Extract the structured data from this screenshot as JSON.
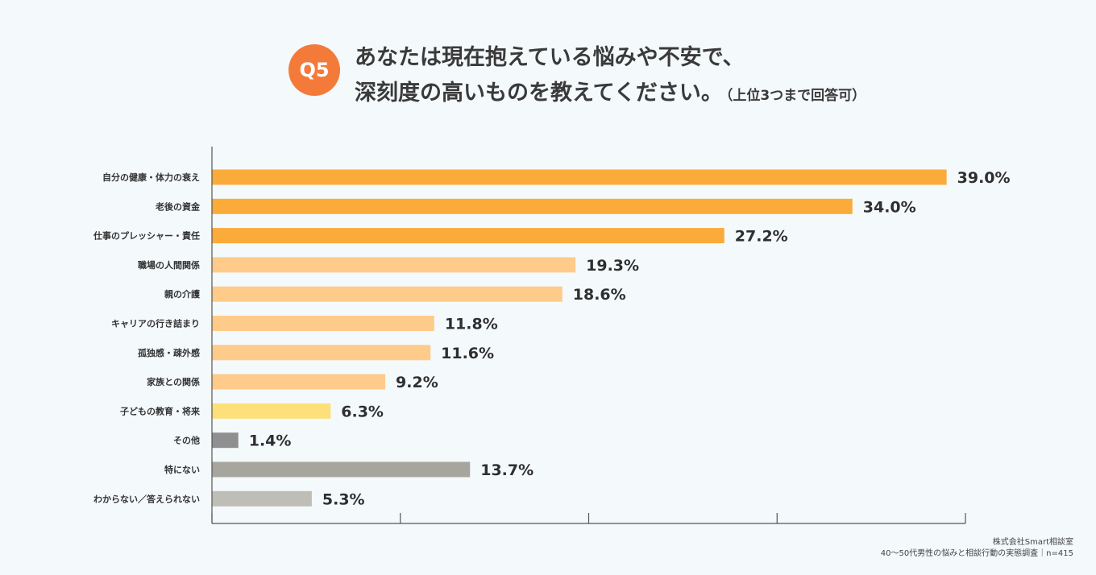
{
  "header": {
    "badge": "Q5",
    "title_line1": "あなたは現在抱えている悩みや不安で、",
    "title_line2": "深刻度の高いものを教えてください。",
    "title_note": "（上位3つまで回答可）"
  },
  "colors": {
    "accent": "#f47a3a",
    "top3": "#fbab3a",
    "mid": "#fecb8a",
    "yellow": "#fde07a",
    "other": "#8f8f8f",
    "none": "#a7a69e",
    "unknown": "#bfbeb6",
    "axis": "#555555"
  },
  "chart_data": {
    "type": "bar",
    "orientation": "horizontal",
    "categories": [
      "自分の健康・体力の衰え",
      "老後の資金",
      "仕事のプレッシャー・責任",
      "職場の人間関係",
      "親の介護",
      "キャリアの行き詰まり",
      "孤独感・疎外感",
      "家族との関係",
      "子どもの教育・将来",
      "その他",
      "特にない",
      "わからない／答えられない"
    ],
    "values": [
      39.0,
      34.0,
      27.2,
      19.3,
      18.6,
      11.8,
      11.6,
      9.2,
      6.3,
      1.4,
      13.7,
      5.3
    ],
    "value_labels": [
      "39.0%",
      "34.0%",
      "27.2%",
      "19.3%",
      "18.6%",
      "11.8%",
      "11.6%",
      "9.2%",
      "6.3%",
      "1.4%",
      "13.7%",
      "5.3%"
    ],
    "bar_color_keys": [
      "top3",
      "top3",
      "top3",
      "mid",
      "mid",
      "mid",
      "mid",
      "mid",
      "yellow",
      "other",
      "none",
      "unknown"
    ],
    "xlim": [
      0,
      40
    ],
    "xticks": [
      0,
      10,
      20,
      30,
      40
    ],
    "title": "",
    "xlabel": "",
    "ylabel": "",
    "grid": false
  },
  "source": {
    "line1": "株式会社Smart相談室",
    "line2": "40〜50代男性の悩みと相談行動の実態調査｜n=415"
  }
}
